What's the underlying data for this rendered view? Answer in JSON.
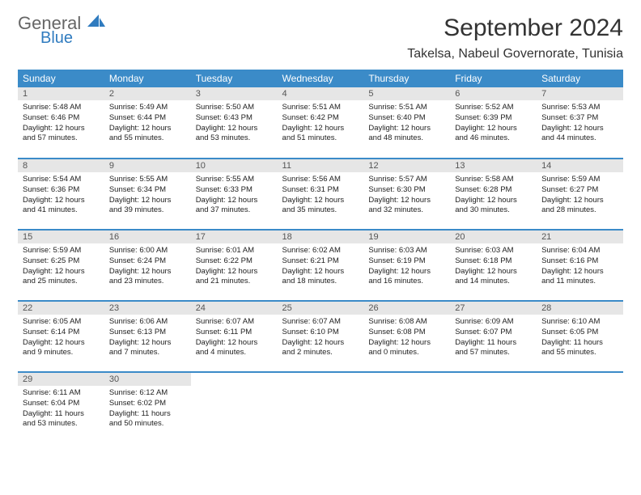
{
  "brand": {
    "general": "General",
    "blue": "Blue"
  },
  "title": "September 2024",
  "location": "Takelsa, Nabeul Governorate, Tunisia",
  "colors": {
    "header_bg": "#3b8bc8",
    "header_text": "#ffffff",
    "daynum_bg": "#e6e6e6",
    "border": "#3b8bc8"
  },
  "weekdays": [
    "Sunday",
    "Monday",
    "Tuesday",
    "Wednesday",
    "Thursday",
    "Friday",
    "Saturday"
  ],
  "weeks": [
    [
      {
        "n": "1",
        "sunrise": "5:48 AM",
        "sunset": "6:46 PM",
        "day_h": "12",
        "day_m": "57"
      },
      {
        "n": "2",
        "sunrise": "5:49 AM",
        "sunset": "6:44 PM",
        "day_h": "12",
        "day_m": "55"
      },
      {
        "n": "3",
        "sunrise": "5:50 AM",
        "sunset": "6:43 PM",
        "day_h": "12",
        "day_m": "53"
      },
      {
        "n": "4",
        "sunrise": "5:51 AM",
        "sunset": "6:42 PM",
        "day_h": "12",
        "day_m": "51"
      },
      {
        "n": "5",
        "sunrise": "5:51 AM",
        "sunset": "6:40 PM",
        "day_h": "12",
        "day_m": "48"
      },
      {
        "n": "6",
        "sunrise": "5:52 AM",
        "sunset": "6:39 PM",
        "day_h": "12",
        "day_m": "46"
      },
      {
        "n": "7",
        "sunrise": "5:53 AM",
        "sunset": "6:37 PM",
        "day_h": "12",
        "day_m": "44"
      }
    ],
    [
      {
        "n": "8",
        "sunrise": "5:54 AM",
        "sunset": "6:36 PM",
        "day_h": "12",
        "day_m": "41"
      },
      {
        "n": "9",
        "sunrise": "5:55 AM",
        "sunset": "6:34 PM",
        "day_h": "12",
        "day_m": "39"
      },
      {
        "n": "10",
        "sunrise": "5:55 AM",
        "sunset": "6:33 PM",
        "day_h": "12",
        "day_m": "37"
      },
      {
        "n": "11",
        "sunrise": "5:56 AM",
        "sunset": "6:31 PM",
        "day_h": "12",
        "day_m": "35"
      },
      {
        "n": "12",
        "sunrise": "5:57 AM",
        "sunset": "6:30 PM",
        "day_h": "12",
        "day_m": "32"
      },
      {
        "n": "13",
        "sunrise": "5:58 AM",
        "sunset": "6:28 PM",
        "day_h": "12",
        "day_m": "30"
      },
      {
        "n": "14",
        "sunrise": "5:59 AM",
        "sunset": "6:27 PM",
        "day_h": "12",
        "day_m": "28"
      }
    ],
    [
      {
        "n": "15",
        "sunrise": "5:59 AM",
        "sunset": "6:25 PM",
        "day_h": "12",
        "day_m": "25"
      },
      {
        "n": "16",
        "sunrise": "6:00 AM",
        "sunset": "6:24 PM",
        "day_h": "12",
        "day_m": "23"
      },
      {
        "n": "17",
        "sunrise": "6:01 AM",
        "sunset": "6:22 PM",
        "day_h": "12",
        "day_m": "21"
      },
      {
        "n": "18",
        "sunrise": "6:02 AM",
        "sunset": "6:21 PM",
        "day_h": "12",
        "day_m": "18"
      },
      {
        "n": "19",
        "sunrise": "6:03 AM",
        "sunset": "6:19 PM",
        "day_h": "12",
        "day_m": "16"
      },
      {
        "n": "20",
        "sunrise": "6:03 AM",
        "sunset": "6:18 PM",
        "day_h": "12",
        "day_m": "14"
      },
      {
        "n": "21",
        "sunrise": "6:04 AM",
        "sunset": "6:16 PM",
        "day_h": "12",
        "day_m": "11"
      }
    ],
    [
      {
        "n": "22",
        "sunrise": "6:05 AM",
        "sunset": "6:14 PM",
        "day_h": "12",
        "day_m": "9"
      },
      {
        "n": "23",
        "sunrise": "6:06 AM",
        "sunset": "6:13 PM",
        "day_h": "12",
        "day_m": "7"
      },
      {
        "n": "24",
        "sunrise": "6:07 AM",
        "sunset": "6:11 PM",
        "day_h": "12",
        "day_m": "4"
      },
      {
        "n": "25",
        "sunrise": "6:07 AM",
        "sunset": "6:10 PM",
        "day_h": "12",
        "day_m": "2"
      },
      {
        "n": "26",
        "sunrise": "6:08 AM",
        "sunset": "6:08 PM",
        "day_h": "12",
        "day_m": "0"
      },
      {
        "n": "27",
        "sunrise": "6:09 AM",
        "sunset": "6:07 PM",
        "day_h": "11",
        "day_m": "57"
      },
      {
        "n": "28",
        "sunrise": "6:10 AM",
        "sunset": "6:05 PM",
        "day_h": "11",
        "day_m": "55"
      }
    ],
    [
      {
        "n": "29",
        "sunrise": "6:11 AM",
        "sunset": "6:04 PM",
        "day_h": "11",
        "day_m": "53"
      },
      {
        "n": "30",
        "sunrise": "6:12 AM",
        "sunset": "6:02 PM",
        "day_h": "11",
        "day_m": "50"
      },
      null,
      null,
      null,
      null,
      null
    ]
  ],
  "labels": {
    "sunrise": "Sunrise:",
    "sunset": "Sunset:",
    "daylight": "Daylight:",
    "hours": "hours",
    "and": "and",
    "minutes": "minutes."
  }
}
